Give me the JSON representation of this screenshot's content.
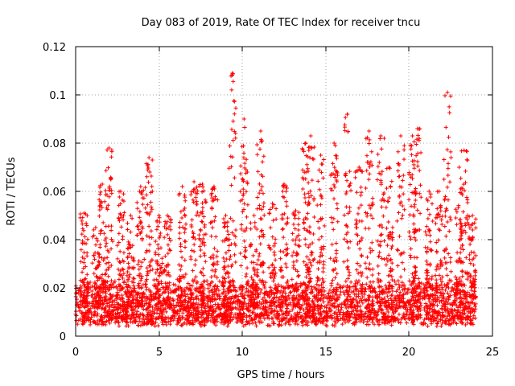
{
  "chart_data": {
    "type": "scatter",
    "title": "Day 083 of 2019, Rate Of TEC Index for receiver tncu",
    "xlabel": "GPS time / hours",
    "ylabel": "ROTI / TECUs",
    "xlim": [
      0,
      25
    ],
    "ylim": [
      0,
      0.12
    ],
    "x_ticks": [
      0,
      5,
      10,
      15,
      20,
      25
    ],
    "x_tick_labels": [
      "0",
      "5",
      "10",
      "15",
      "20",
      "25"
    ],
    "y_ticks": [
      0,
      0.02,
      0.04,
      0.06,
      0.08,
      0.1,
      0.12
    ],
    "y_tick_labels": [
      "0",
      "0.02",
      "0.04",
      "0.06",
      "0.08",
      "0.1",
      "0.12"
    ],
    "grid": true,
    "marker": "+",
    "color": "#ff0000",
    "baseline_range": [
      0.004,
      0.02
    ],
    "x_range_data": [
      0,
      24
    ],
    "series": [
      {
        "name": "ROTI",
        "peaks": [
          {
            "x": 0.5,
            "y": 0.051
          },
          {
            "x": 1.2,
            "y": 0.045
          },
          {
            "x": 1.6,
            "y": 0.063
          },
          {
            "x": 2.0,
            "y": 0.078
          },
          {
            "x": 2.7,
            "y": 0.06
          },
          {
            "x": 3.3,
            "y": 0.05
          },
          {
            "x": 3.9,
            "y": 0.062
          },
          {
            "x": 4.4,
            "y": 0.074
          },
          {
            "x": 5.0,
            "y": 0.05
          },
          {
            "x": 5.5,
            "y": 0.05
          },
          {
            "x": 6.4,
            "y": 0.062
          },
          {
            "x": 7.1,
            "y": 0.064
          },
          {
            "x": 7.6,
            "y": 0.063
          },
          {
            "x": 8.3,
            "y": 0.062
          },
          {
            "x": 9.0,
            "y": 0.05
          },
          {
            "x": 9.4,
            "y": 0.109
          },
          {
            "x": 10.1,
            "y": 0.09
          },
          {
            "x": 10.7,
            "y": 0.05
          },
          {
            "x": 11.1,
            "y": 0.085
          },
          {
            "x": 11.8,
            "y": 0.055
          },
          {
            "x": 12.5,
            "y": 0.063
          },
          {
            "x": 13.2,
            "y": 0.052
          },
          {
            "x": 13.8,
            "y": 0.08
          },
          {
            "x": 14.1,
            "y": 0.083
          },
          {
            "x": 14.7,
            "y": 0.075
          },
          {
            "x": 15.5,
            "y": 0.08
          },
          {
            "x": 16.3,
            "y": 0.092
          },
          {
            "x": 17.0,
            "y": 0.07
          },
          {
            "x": 17.6,
            "y": 0.085
          },
          {
            "x": 18.3,
            "y": 0.083
          },
          {
            "x": 18.8,
            "y": 0.07
          },
          {
            "x": 19.5,
            "y": 0.083
          },
          {
            "x": 20.2,
            "y": 0.083
          },
          {
            "x": 20.5,
            "y": 0.086
          },
          {
            "x": 21.2,
            "y": 0.06
          },
          {
            "x": 21.8,
            "y": 0.06
          },
          {
            "x": 22.3,
            "y": 0.101
          },
          {
            "x": 23.0,
            "y": 0.07
          },
          {
            "x": 23.3,
            "y": 0.077
          },
          {
            "x": 23.8,
            "y": 0.05
          }
        ]
      }
    ]
  }
}
